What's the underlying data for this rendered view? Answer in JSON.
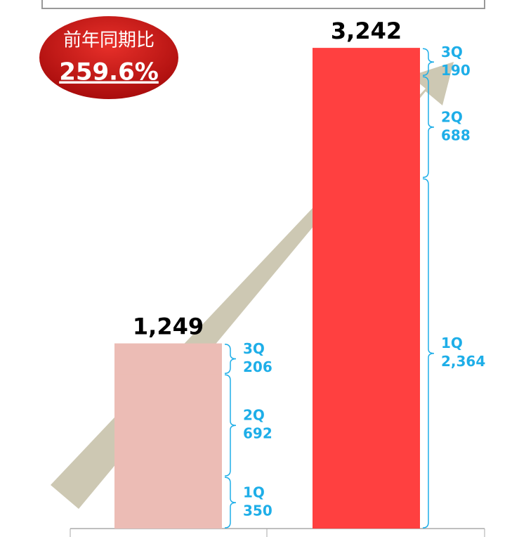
{
  "chart_data": {
    "type": "bar",
    "categories": [
      null,
      null
    ],
    "bar_colors": [
      "#ecbcb5",
      "#ff4040"
    ],
    "totals": [
      1249,
      3242
    ],
    "total_labels": [
      "1,249",
      "3,242"
    ],
    "series": [
      {
        "name": "1Q",
        "color": "#1eaee8",
        "values": [
          350,
          2364
        ],
        "value_labels": [
          "350",
          "2,364"
        ]
      },
      {
        "name": "2Q",
        "color": "#1eaee8",
        "values": [
          692,
          688
        ],
        "value_labels": [
          "692",
          "688"
        ]
      },
      {
        "name": "3Q",
        "color": "#1eaee8",
        "values": [
          206,
          190
        ],
        "value_labels": [
          "206",
          "190"
        ]
      }
    ],
    "ylim": [
      0,
      3300
    ],
    "badge": {
      "title": "前年同期比",
      "text": "259.6%"
    }
  }
}
